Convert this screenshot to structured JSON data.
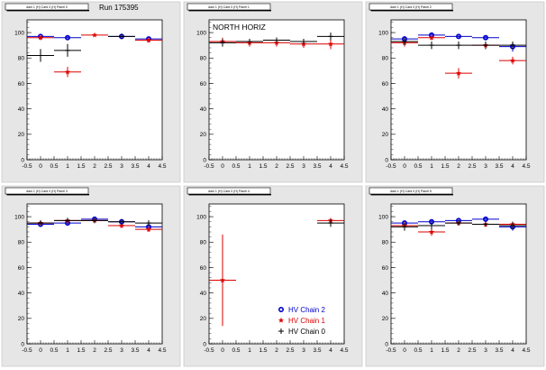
{
  "colors": {
    "pad_background": "#e6e6e6",
    "frame_background": "#ffffff",
    "series": {
      "HV Chain 2": "#0000cc",
      "HV Chain 1": "#dd0000",
      "HV Chain 0": "#000000"
    }
  },
  "run_label": "Run 175395",
  "legend": [
    {
      "label": "HV Chain 2",
      "marker": "circle",
      "color": "#0000cc"
    },
    {
      "label": "HV Chain 1",
      "marker": "star",
      "color": "#dd0000"
    },
    {
      "label": "HV Chain 0",
      "marker": "cross",
      "color": "#000000"
    }
  ],
  "chart_data": [
    {
      "type": "scatter",
      "title": "dam 1 (H) Card 0 (H) Panel 0",
      "annotation": "Run 175395",
      "xlim": [
        -0.5,
        4.5
      ],
      "ylim": [
        0,
        110
      ],
      "x_ticks": [
        "-0.5",
        "0",
        "0.5",
        "1",
        "1.5",
        "2",
        "2.5",
        "3",
        "3.5",
        "4",
        "4.5"
      ],
      "y_ticks": [
        "0",
        "20",
        "40",
        "60",
        "80",
        "100"
      ],
      "series": [
        {
          "name": "HV Chain 2",
          "color": "#0000cc",
          "x": [
            0,
            1,
            3,
            4
          ],
          "y": [
            97,
            96,
            97,
            95
          ],
          "ex": [
            0.5,
            0.5,
            0.5,
            0.5
          ],
          "ey": [
            1,
            1,
            1,
            1
          ]
        },
        {
          "name": "HV Chain 1",
          "color": "#dd0000",
          "x": [
            0,
            1,
            2,
            4
          ],
          "y": [
            96,
            69,
            98,
            94
          ],
          "ex": [
            0.5,
            0.5,
            0.5,
            0.5
          ],
          "ey": [
            2,
            4,
            1,
            2
          ]
        },
        {
          "name": "HV Chain 0",
          "color": "#000000",
          "x": [
            0,
            1,
            3
          ],
          "y": [
            82,
            86,
            97
          ],
          "ex": [
            0.5,
            0.5,
            0.5
          ],
          "ey": [
            5,
            5,
            2
          ]
        }
      ]
    },
    {
      "type": "scatter",
      "title": "dam 1 (H) Card 0 (H) Panel 1",
      "annotation": "NORTH HORIZ",
      "xlim": [
        -0.5,
        4.5
      ],
      "ylim": [
        0,
        110
      ],
      "x_ticks": [
        "-0.5",
        "0",
        "0.5",
        "1",
        "1.5",
        "2",
        "2.5",
        "3",
        "3.5",
        "4",
        "4.5"
      ],
      "y_ticks": [
        "0",
        "20",
        "40",
        "60",
        "80",
        "100"
      ],
      "series": [
        {
          "name": "HV Chain 1",
          "color": "#dd0000",
          "x": [
            0,
            1,
            2,
            3,
            4
          ],
          "y": [
            93,
            92,
            92,
            91,
            91
          ],
          "ex": [
            0.5,
            0.5,
            0.5,
            0.5,
            0.5
          ],
          "ey": [
            3,
            3,
            3,
            3,
            4
          ]
        },
        {
          "name": "HV Chain 0",
          "color": "#000000",
          "x": [
            0,
            1,
            2,
            3,
            4
          ],
          "y": [
            92,
            93,
            94,
            93,
            97
          ],
          "ex": [
            0.5,
            0.5,
            0.5,
            0.5,
            0.5
          ],
          "ey": [
            3,
            2,
            2,
            2,
            3
          ]
        }
      ]
    },
    {
      "type": "scatter",
      "title": "dam 1 (H) Card 0 (H) Panel 2",
      "annotation": "",
      "xlim": [
        -0.5,
        4.5
      ],
      "ylim": [
        0,
        110
      ],
      "x_ticks": [
        "-0.5",
        "0",
        "0.5",
        "1",
        "1.5",
        "2",
        "2.5",
        "3",
        "3.5",
        "4",
        "4.5"
      ],
      "y_ticks": [
        "0",
        "20",
        "40",
        "60",
        "80",
        "100"
      ],
      "series": [
        {
          "name": "HV Chain 2",
          "color": "#0000cc",
          "x": [
            0,
            1,
            2,
            3,
            4
          ],
          "y": [
            95,
            98,
            97,
            96,
            89
          ],
          "ex": [
            0.5,
            0.5,
            0.5,
            0.5,
            0.5
          ],
          "ey": [
            2,
            2,
            1,
            2,
            4
          ]
        },
        {
          "name": "HV Chain 1",
          "color": "#dd0000",
          "x": [
            0,
            1,
            2,
            3,
            4
          ],
          "y": [
            92,
            96,
            68,
            90,
            78
          ],
          "ex": [
            0.5,
            0.5,
            0.5,
            0.5,
            0.5
          ],
          "ey": [
            3,
            2,
            4,
            3,
            3
          ]
        },
        {
          "name": "HV Chain 0",
          "color": "#000000",
          "x": [
            0,
            1,
            2,
            3,
            4
          ],
          "y": [
            93,
            90,
            90,
            90,
            90
          ],
          "ex": [
            0.5,
            0.5,
            0.5,
            0.5,
            0.5
          ],
          "ey": [
            3,
            3,
            3,
            3,
            3
          ]
        }
      ]
    },
    {
      "type": "scatter",
      "title": "dam 1 (H) Card 0 (H) Panel 3",
      "annotation": "",
      "xlim": [
        -0.5,
        4.5
      ],
      "ylim": [
        0,
        110
      ],
      "x_ticks": [
        "-0.5",
        "0",
        "0.5",
        "1",
        "1.5",
        "2",
        "2.5",
        "3",
        "3.5",
        "4",
        "4.5"
      ],
      "y_ticks": [
        "0",
        "20",
        "40",
        "60",
        "80",
        "100"
      ],
      "series": [
        {
          "name": "HV Chain 2",
          "color": "#0000cc",
          "x": [
            0,
            1,
            2,
            3,
            4
          ],
          "y": [
            94,
            95,
            98,
            96,
            92
          ],
          "ex": [
            0.5,
            0.5,
            0.5,
            0.5,
            0.5
          ],
          "ey": [
            2,
            2,
            1,
            2,
            3
          ]
        },
        {
          "name": "HV Chain 1",
          "color": "#dd0000",
          "x": [
            0,
            1,
            2,
            3,
            4
          ],
          "y": [
            95,
            97,
            97,
            93,
            90
          ],
          "ex": [
            0.5,
            0.5,
            0.5,
            0.5,
            0.5
          ],
          "ey": [
            2,
            2,
            1,
            2,
            2
          ]
        },
        {
          "name": "HV Chain 0",
          "color": "#000000",
          "x": [
            0,
            1,
            2,
            3,
            4
          ],
          "y": [
            95,
            97,
            97,
            96,
            95
          ],
          "ex": [
            0.5,
            0.5,
            0.5,
            0.5,
            0.5
          ],
          "ey": [
            2,
            2,
            1,
            2,
            2
          ]
        }
      ]
    },
    {
      "type": "scatter",
      "title": "dam 1 (H) Card 0 (H) Panel 4",
      "annotation": "",
      "xlim": [
        -0.5,
        4.5
      ],
      "ylim": [
        0,
        110
      ],
      "x_ticks": [
        "-0.5",
        "0",
        "0.5",
        "1",
        "1.5",
        "2",
        "2.5",
        "3",
        "3.5",
        "4",
        "4.5"
      ],
      "y_ticks": [
        "0",
        "20",
        "40",
        "60",
        "80",
        "100"
      ],
      "series": [
        {
          "name": "HV Chain 1",
          "color": "#dd0000",
          "x": [
            0,
            4
          ],
          "y": [
            50,
            97
          ],
          "ex": [
            0.5,
            0.5
          ],
          "ey": [
            36,
            2
          ]
        },
        {
          "name": "HV Chain 0",
          "color": "#000000",
          "x": [
            4
          ],
          "y": [
            95
          ],
          "ex": [
            0.5
          ],
          "ey": [
            3
          ]
        }
      ],
      "legend": [
        "HV Chain 2",
        "HV Chain 1",
        "HV Chain 0"
      ]
    },
    {
      "type": "scatter",
      "title": "dam 1 (H) Card 0 (H) Panel 5",
      "annotation": "",
      "xlim": [
        -0.5,
        4.5
      ],
      "ylim": [
        0,
        110
      ],
      "x_ticks": [
        "-0.5",
        "0",
        "0.5",
        "1",
        "1.5",
        "2",
        "2.5",
        "3",
        "3.5",
        "4",
        "4.5"
      ],
      "y_ticks": [
        "0",
        "20",
        "40",
        "60",
        "80",
        "100"
      ],
      "series": [
        {
          "name": "HV Chain 2",
          "color": "#0000cc",
          "x": [
            0,
            1,
            2,
            3,
            4
          ],
          "y": [
            95,
            96,
            97,
            98,
            92
          ],
          "ex": [
            0.5,
            0.5,
            0.5,
            0.5,
            0.5
          ],
          "ey": [
            2,
            2,
            1,
            1,
            3
          ]
        },
        {
          "name": "HV Chain 1",
          "color": "#dd0000",
          "x": [
            0,
            1,
            2,
            3,
            4
          ],
          "y": [
            93,
            88,
            95,
            94,
            94
          ],
          "ex": [
            0.5,
            0.5,
            0.5,
            0.5,
            0.5
          ],
          "ey": [
            3,
            3,
            2,
            2,
            2
          ]
        },
        {
          "name": "HV Chain 0",
          "color": "#000000",
          "x": [
            0,
            1,
            2,
            3,
            4
          ],
          "y": [
            92,
            93,
            95,
            94,
            93
          ],
          "ex": [
            0.5,
            0.5,
            0.5,
            0.5,
            0.5
          ],
          "ey": [
            3,
            3,
            2,
            2,
            3
          ]
        }
      ]
    }
  ]
}
